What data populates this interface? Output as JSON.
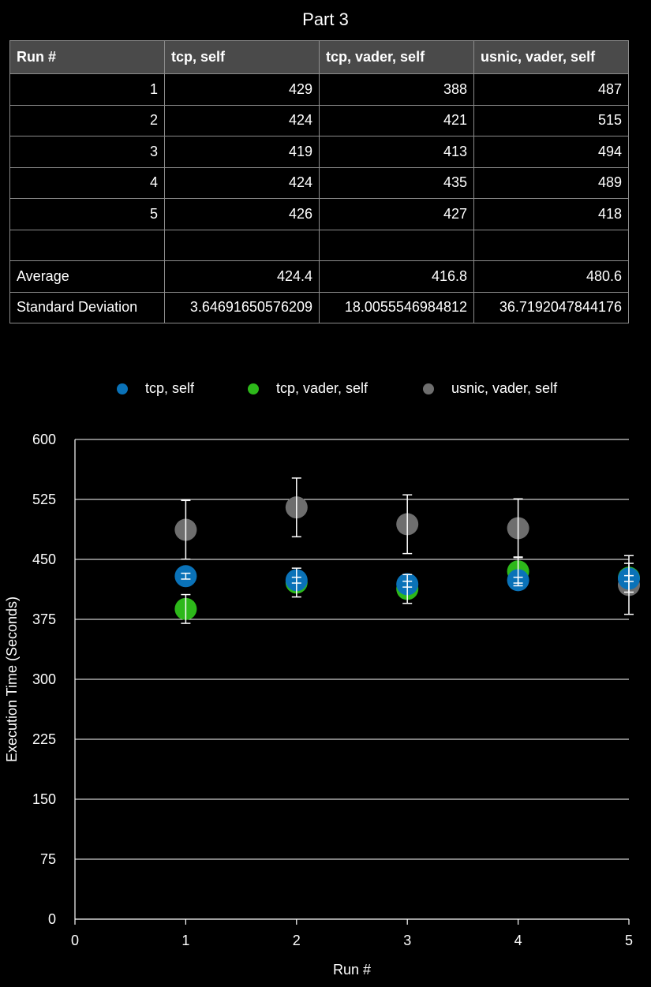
{
  "title": "Part 3",
  "table": {
    "headers": [
      "Run #",
      "tcp, self",
      "tcp, vader, self",
      "usnic, vader, self"
    ],
    "rows": [
      [
        "1",
        "429",
        "388",
        "487"
      ],
      [
        "2",
        "424",
        "421",
        "515"
      ],
      [
        "3",
        "419",
        "413",
        "494"
      ],
      [
        "4",
        "424",
        "435",
        "489"
      ],
      [
        "5",
        "426",
        "427",
        "418"
      ],
      [
        "",
        "",
        "",
        ""
      ],
      [
        "Average",
        "424.4",
        "416.8",
        "480.6"
      ],
      [
        "Standard Deviation",
        "3.64691650576209",
        "18.0055546984812",
        "36.7192047844176"
      ]
    ]
  },
  "legend": [
    {
      "label": "tcp, self",
      "color": "#0a72b8"
    },
    {
      "label": "tcp, vader, self",
      "color": "#2db81a"
    },
    {
      "label": "usnic, vader, self",
      "color": "#6e6e6e"
    }
  ],
  "chart_data": {
    "type": "scatter",
    "xlabel": "Run #",
    "ylabel": "Execution Time (Seconds)",
    "xlim": [
      0,
      5
    ],
    "ylim": [
      0,
      600
    ],
    "xticks": [
      0,
      1,
      2,
      3,
      4,
      5
    ],
    "yticks": [
      0,
      75,
      150,
      225,
      300,
      375,
      450,
      525,
      600
    ],
    "grid": "horizontal",
    "legend_position": "top",
    "series": [
      {
        "name": "tcp, self",
        "color": "#0a72b8",
        "x": [
          1,
          2,
          3,
          4,
          5
        ],
        "values": [
          429,
          424,
          419,
          424,
          426
        ],
        "error": 3.64691650576209
      },
      {
        "name": "tcp, vader, self",
        "color": "#2db81a",
        "x": [
          1,
          2,
          3,
          4,
          5
        ],
        "values": [
          388,
          421,
          413,
          435,
          427
        ],
        "error": 18.0055546984812
      },
      {
        "name": "usnic, vader, self",
        "color": "#6e6e6e",
        "x": [
          1,
          2,
          3,
          4,
          5
        ],
        "values": [
          487,
          515,
          494,
          489,
          418
        ],
        "error": 36.7192047844176
      }
    ]
  }
}
